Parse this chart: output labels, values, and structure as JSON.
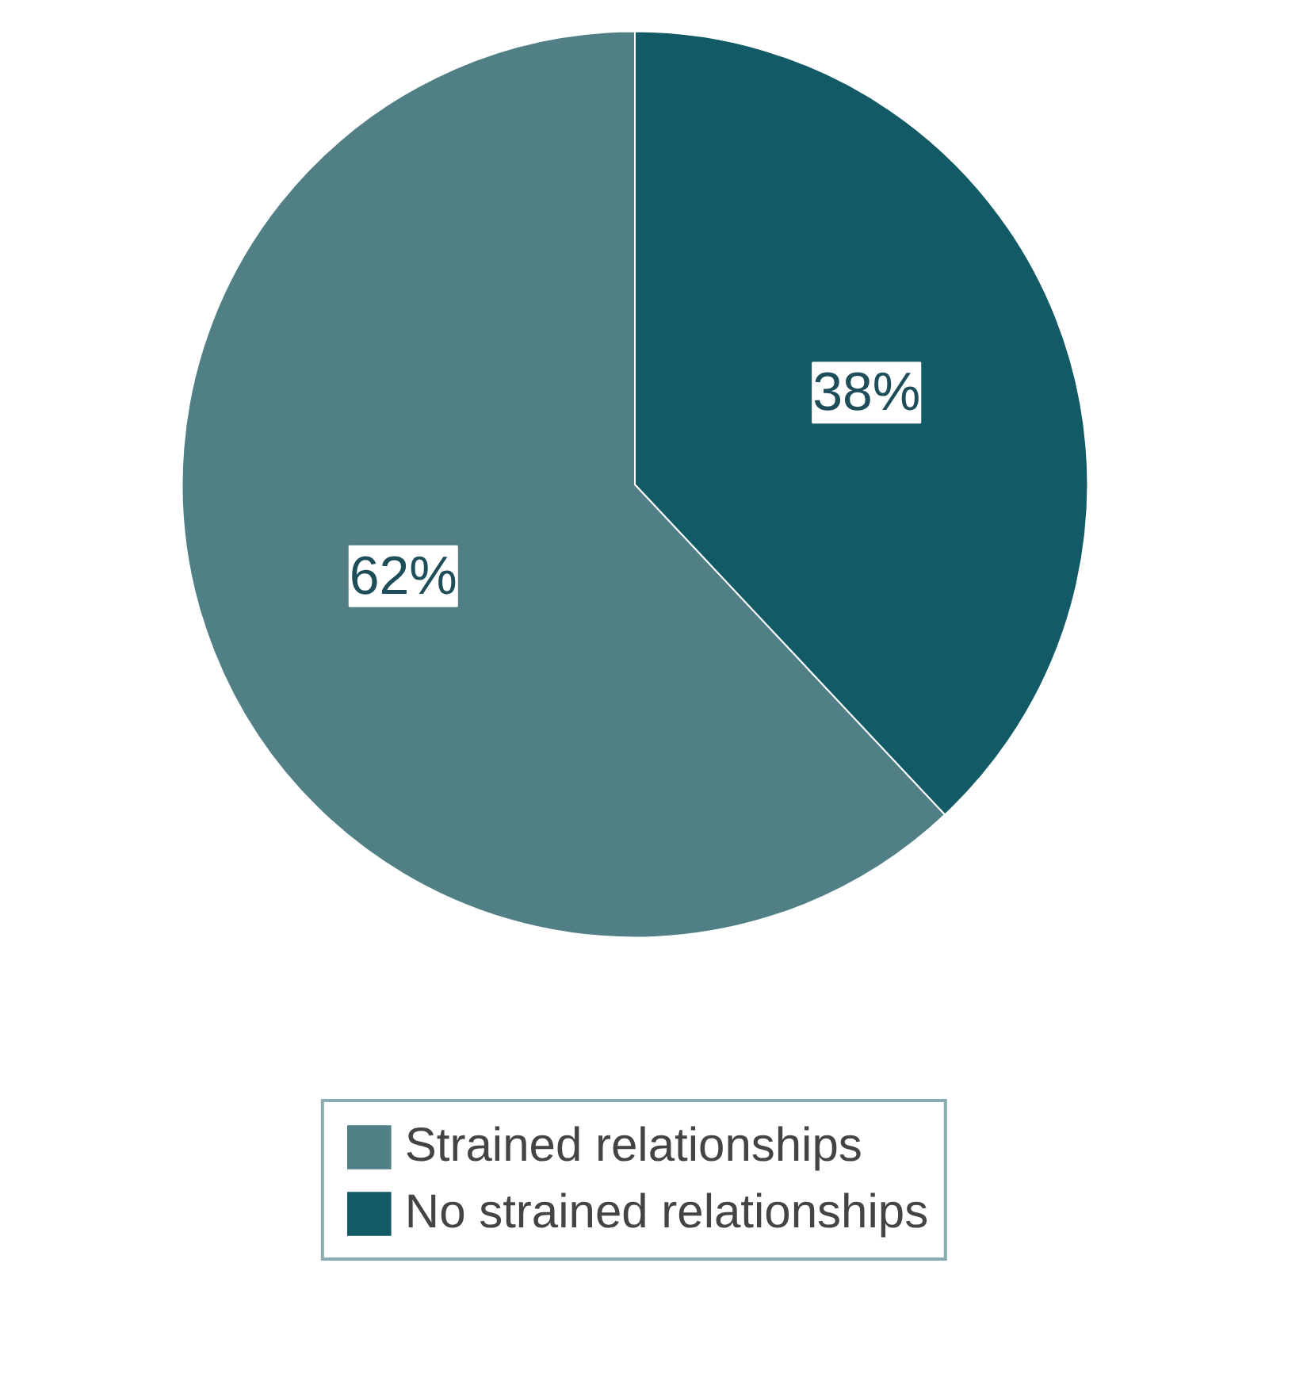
{
  "chart_data": {
    "type": "pie",
    "categories": [
      "Strained relationships",
      "No strained relationships"
    ],
    "values": [
      62,
      38
    ],
    "colors": [
      "#507f86",
      "#115a66"
    ],
    "value_labels": [
      "62%",
      "38%"
    ],
    "legend": "bottom"
  }
}
